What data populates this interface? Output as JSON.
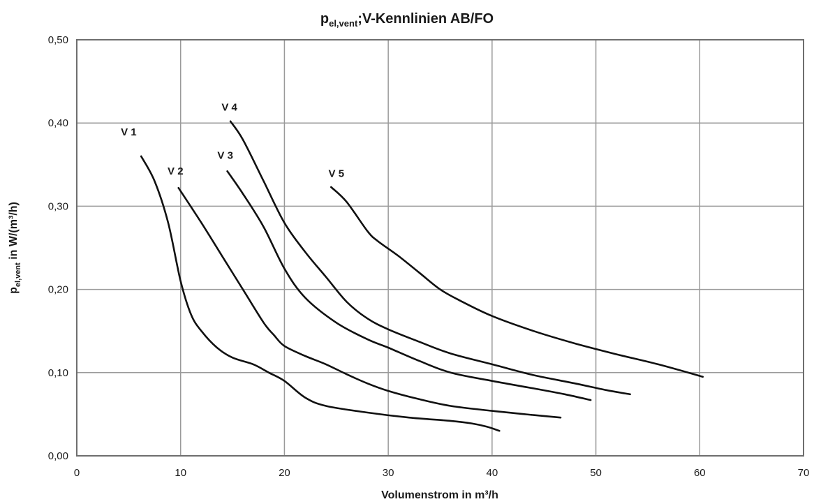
{
  "chart_data": {
    "type": "line",
    "title": {
      "prefix": "p",
      "subscript": "el,vent",
      "suffix": ";V-Kennlinien AB/FO"
    },
    "xlabel": "Volumenstrom in m³/h",
    "ylabel": {
      "prefix": "p",
      "subscript": "el,vent",
      "suffix": " in W/(m³/h)"
    },
    "xlim": [
      0,
      70
    ],
    "ylim": [
      0,
      0.5
    ],
    "x_ticks": [
      {
        "value": 0,
        "label": "0"
      },
      {
        "value": 10,
        "label": "10"
      },
      {
        "value": 20,
        "label": "20"
      },
      {
        "value": 30,
        "label": "30"
      },
      {
        "value": 40,
        "label": "40"
      },
      {
        "value": 50,
        "label": "50"
      },
      {
        "value": 60,
        "label": "60"
      },
      {
        "value": 70,
        "label": "70"
      }
    ],
    "y_ticks": [
      {
        "value": 0,
        "label": "0,00"
      },
      {
        "value": 0.1,
        "label": "0,10"
      },
      {
        "value": 0.2,
        "label": "0,20"
      },
      {
        "value": 0.3,
        "label": "0,30"
      },
      {
        "value": 0.4,
        "label": "0,40"
      },
      {
        "value": 0.5,
        "label": "0,50"
      }
    ],
    "grid": true,
    "series": [
      {
        "name": "V 1",
        "label_at": [
          5,
          0.385
        ],
        "points": [
          [
            6.2,
            0.36
          ],
          [
            7.5,
            0.33
          ],
          [
            8.8,
            0.28
          ],
          [
            10,
            0.21
          ],
          [
            11,
            0.17
          ],
          [
            12,
            0.15
          ],
          [
            13.5,
            0.13
          ],
          [
            15,
            0.118
          ],
          [
            17,
            0.11
          ],
          [
            18.5,
            0.1
          ],
          [
            20,
            0.09
          ],
          [
            22,
            0.07
          ],
          [
            24,
            0.06
          ],
          [
            28,
            0.052
          ],
          [
            32,
            0.046
          ],
          [
            36,
            0.042
          ],
          [
            38,
            0.039
          ],
          [
            39.5,
            0.035
          ],
          [
            40.7,
            0.03
          ]
        ]
      },
      {
        "name": "V 2",
        "label_at": [
          9.5,
          0.338
        ],
        "points": [
          [
            9.8,
            0.322
          ],
          [
            12,
            0.28
          ],
          [
            14,
            0.24
          ],
          [
            16,
            0.2
          ],
          [
            18,
            0.16
          ],
          [
            19,
            0.145
          ],
          [
            20,
            0.132
          ],
          [
            22,
            0.12
          ],
          [
            24,
            0.11
          ],
          [
            26,
            0.098
          ],
          [
            28,
            0.087
          ],
          [
            30,
            0.078
          ],
          [
            33,
            0.068
          ],
          [
            36,
            0.06
          ],
          [
            40,
            0.054
          ],
          [
            44,
            0.049
          ],
          [
            46.6,
            0.046
          ]
        ]
      },
      {
        "name": "V 3",
        "label_at": [
          14.3,
          0.357
        ],
        "points": [
          [
            14.5,
            0.342
          ],
          [
            16,
            0.315
          ],
          [
            18,
            0.275
          ],
          [
            20,
            0.225
          ],
          [
            22,
            0.19
          ],
          [
            25,
            0.16
          ],
          [
            28,
            0.14
          ],
          [
            30,
            0.13
          ],
          [
            33,
            0.114
          ],
          [
            36,
            0.1
          ],
          [
            40,
            0.09
          ],
          [
            44,
            0.081
          ],
          [
            47,
            0.074
          ],
          [
            49.5,
            0.067
          ]
        ]
      },
      {
        "name": "V 4",
        "label_at": [
          14.7,
          0.415
        ],
        "points": [
          [
            14.8,
            0.402
          ],
          [
            16,
            0.38
          ],
          [
            18,
            0.33
          ],
          [
            20,
            0.28
          ],
          [
            22,
            0.245
          ],
          [
            24,
            0.215
          ],
          [
            26,
            0.185
          ],
          [
            28,
            0.165
          ],
          [
            30,
            0.152
          ],
          [
            33,
            0.137
          ],
          [
            36,
            0.123
          ],
          [
            40,
            0.11
          ],
          [
            44,
            0.097
          ],
          [
            48,
            0.087
          ],
          [
            51,
            0.079
          ],
          [
            53.3,
            0.074
          ]
        ]
      },
      {
        "name": "V 5",
        "label_at": [
          25,
          0.335
        ],
        "points": [
          [
            24.5,
            0.323
          ],
          [
            26,
            0.305
          ],
          [
            28,
            0.27
          ],
          [
            29,
            0.258
          ],
          [
            31,
            0.24
          ],
          [
            33,
            0.22
          ],
          [
            35,
            0.2
          ],
          [
            37,
            0.186
          ],
          [
            40,
            0.168
          ],
          [
            44,
            0.15
          ],
          [
            48,
            0.135
          ],
          [
            52,
            0.122
          ],
          [
            56,
            0.11
          ],
          [
            60.3,
            0.095
          ]
        ]
      }
    ]
  }
}
